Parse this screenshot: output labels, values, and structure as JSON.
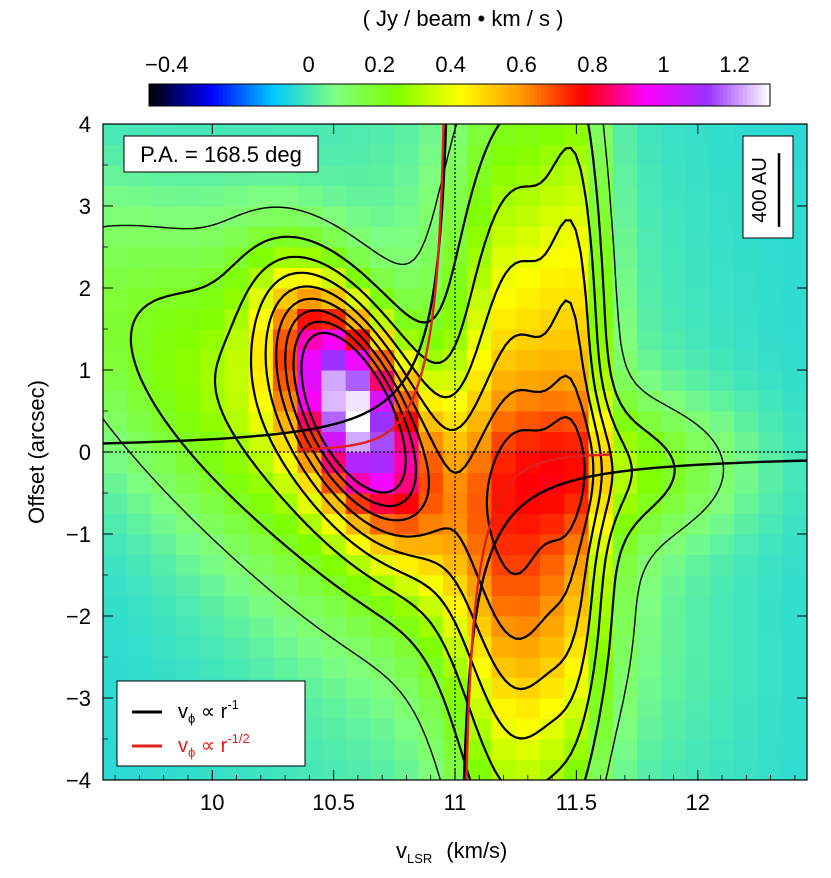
{
  "chart_data": {
    "type": "heatmap",
    "title": "",
    "colorbar": {
      "label": "( Jy / beam • km / s )",
      "range": [
        -0.45,
        1.3
      ],
      "ticks": [
        -0.4,
        0,
        0.2,
        0.4,
        0.6,
        0.8,
        1,
        1.2
      ],
      "tick_labels": [
        "−0.4",
        "0",
        "0.2",
        "0.4",
        "0.6",
        "0.8",
        "1",
        "1.2"
      ],
      "colormap": [
        "#000000",
        "#0000ff",
        "#00c8ff",
        "#7fff7f",
        "#7fff00",
        "#ffff00",
        "#ff9900",
        "#ff0000",
        "#ff00ff",
        "#9933ff",
        "#ffffff"
      ]
    },
    "xlabel": "v",
    "xlabel_sub": "LSR",
    "xlabel_unit": "(km/s)",
    "ylabel": "Offset (arcsec)",
    "xlim": [
      9.55,
      12.45
    ],
    "ylim": [
      -4,
      4
    ],
    "xticks": [
      10,
      10.5,
      11,
      11.5,
      12
    ],
    "xtick_labels": [
      "10",
      "10.5",
      "11",
      "11.5",
      "12"
    ],
    "yticks": [
      -4,
      -3,
      -2,
      -1,
      0,
      1,
      2,
      3,
      4
    ],
    "ytick_labels": [
      "−4",
      "−3",
      "−2",
      "−1",
      "0",
      "1",
      "2",
      "3",
      "4"
    ],
    "systemic_velocity": 11.0,
    "zero_offset": 0,
    "annotation": "P.A. = 168.5 deg",
    "scale_bar": {
      "label": "400 AU",
      "length_arcsec": 0.9
    },
    "emission_components": [
      {
        "v0": 10.57,
        "y0": 0.6,
        "sv": 0.17,
        "sy": 1.0,
        "amp": 1.0,
        "tilt": -0.12
      },
      {
        "v0": 10.3,
        "y0": 0.3,
        "sv": 0.55,
        "sy": 1.9,
        "amp": 0.32,
        "tilt": -0.3
      },
      {
        "v0": 11.27,
        "y0": -0.5,
        "sv": 0.2,
        "sy": 3.4,
        "amp": 0.5,
        "tilt": 0.0
      },
      {
        "v0": 11.5,
        "y0": 1.0,
        "sv": 0.08,
        "sy": 3.0,
        "amp": 0.25,
        "tilt": 0.0
      },
      {
        "v0": 11.7,
        "y0": -0.2,
        "sv": 0.35,
        "sy": 0.6,
        "amp": 0.22,
        "tilt": 0.0
      },
      {
        "v0": 11.0,
        "y0": 0.0,
        "sv": 0.7,
        "sy": 3.5,
        "amp": 0.12,
        "tilt": 0.0
      }
    ],
    "series": [
      {
        "name": "vϕ ∝ r⁻¹",
        "color": "#000000",
        "power": 1,
        "k": 0.14
      },
      {
        "name": "vϕ ∝ r⁻¹ᐟ²",
        "color": "#e0201a",
        "power": 0.5,
        "k": 0.09
      }
    ],
    "legend": {
      "entries": [
        {
          "prefix": "v",
          "sub": "ϕ",
          "rel": " ∝ r",
          "sup": "-1",
          "color": "#000000"
        },
        {
          "prefix": "v",
          "sub": "ϕ",
          "rel": " ∝ r",
          "sup": "-1/2",
          "color": "#e0201a"
        }
      ],
      "position": "bottom-left"
    },
    "grid": false
  }
}
